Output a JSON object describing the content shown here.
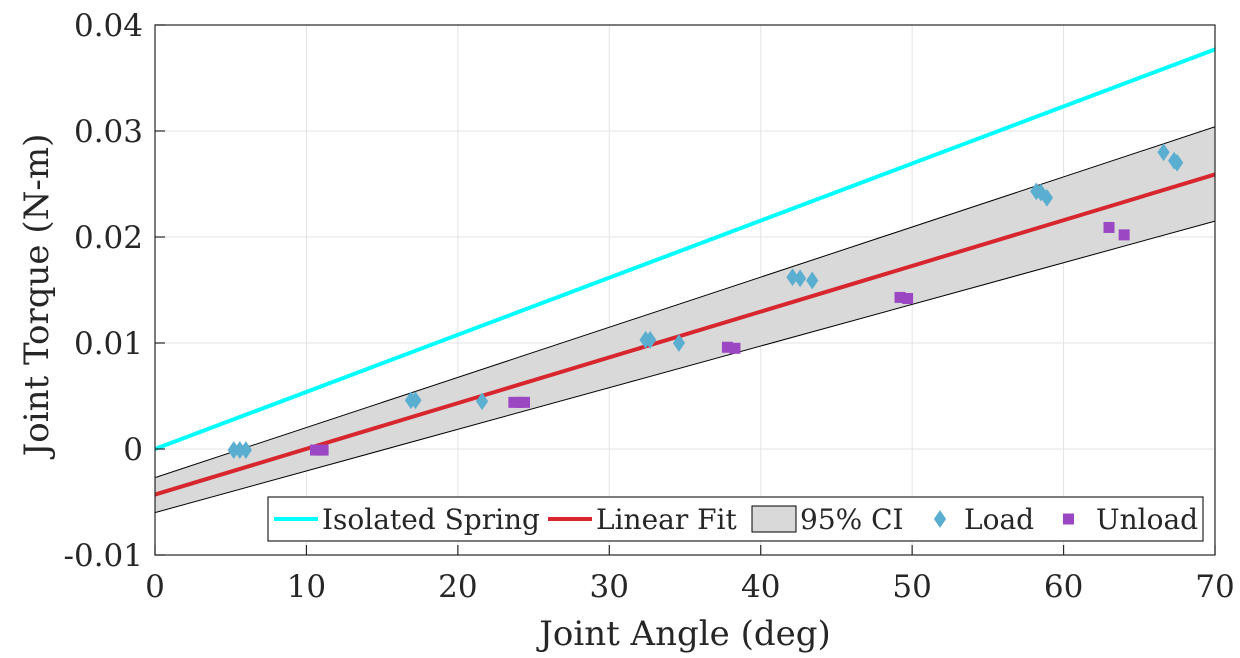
{
  "chart_data": {
    "type": "scatter",
    "title": "",
    "xlabel": "Joint Angle (deg)",
    "ylabel": "Joint Torque (N-m)",
    "xlim": [
      0,
      70
    ],
    "ylim": [
      -0.01,
      0.04
    ],
    "xticks": [
      0,
      10,
      20,
      30,
      40,
      50,
      60,
      70
    ],
    "xtick_labels": [
      "0",
      "10",
      "20",
      "30",
      "40",
      "50",
      "60",
      "70"
    ],
    "yticks": [
      -0.01,
      0,
      0.01,
      0.02,
      0.03,
      0.04
    ],
    "ytick_labels": [
      "-0.01",
      "0",
      "0.01",
      "0.02",
      "0.03",
      "0.04"
    ],
    "grid": true,
    "legend_position": "bottom-right",
    "colors": {
      "isolated_spring": "#00ffff",
      "linear_fit": "#d7262e",
      "ci_fill": "#d9d9d9",
      "ci_edge": "#000000",
      "load": "#5aaed0",
      "unload": "#9b47c4"
    },
    "legend": [
      {
        "key": "isolated_spring",
        "label": "Isolated Spring"
      },
      {
        "key": "linear_fit",
        "label": "Linear Fit"
      },
      {
        "key": "ci",
        "label": "95% CI"
      },
      {
        "key": "load",
        "label": "Load"
      },
      {
        "key": "unload",
        "label": "Unload"
      }
    ],
    "lines": {
      "isolated_spring": {
        "x": [
          0,
          70
        ],
        "y": [
          0.0,
          0.0377
        ]
      },
      "linear_fit": {
        "x": [
          0,
          70
        ],
        "y": [
          -0.0043,
          0.0259
        ]
      },
      "ci_upper": {
        "x": [
          0,
          70
        ],
        "y": [
          -0.0027,
          0.0304
        ]
      },
      "ci_lower": {
        "x": [
          0,
          70
        ],
        "y": [
          -0.006,
          0.0215
        ]
      }
    },
    "series": [
      {
        "name": "Load",
        "marker": "diamond",
        "x": [
          5.2,
          5.6,
          6.0,
          16.9,
          17.2,
          21.6,
          32.4,
          32.7,
          34.6,
          42.1,
          42.6,
          43.4,
          58.2,
          58.5,
          58.9,
          66.6,
          67.3,
          67.5
        ],
        "y": [
          -0.0001,
          -0.0001,
          -0.0001,
          0.0046,
          0.0046,
          0.0045,
          0.0103,
          0.0103,
          0.01,
          0.0162,
          0.0161,
          0.0159,
          0.0243,
          0.0242,
          0.0237,
          0.028,
          0.0272,
          0.027
        ]
      },
      {
        "name": "Unload",
        "marker": "square",
        "x": [
          10.6,
          10.9,
          11.1,
          23.7,
          24.1,
          24.4,
          37.8,
          38.3,
          49.2,
          49.7,
          63.0,
          64.0
        ],
        "y": [
          -0.0001,
          -0.0001,
          -0.0001,
          0.0044,
          0.0044,
          0.0044,
          0.0096,
          0.0095,
          0.0143,
          0.0142,
          0.0209,
          0.0202
        ]
      }
    ]
  }
}
